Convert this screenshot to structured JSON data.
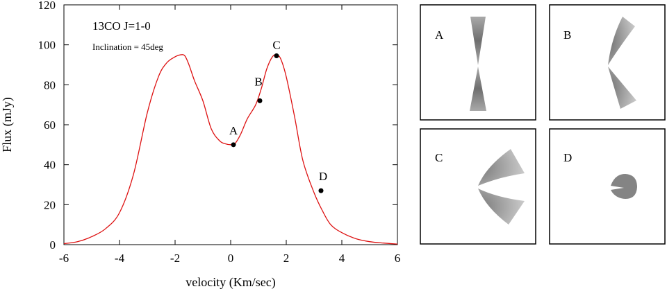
{
  "chart_data": {
    "type": "line",
    "xlabel": "velocity (Km/sec)",
    "ylabel": "Flux (mJy)",
    "xlim": [
      -6,
      6
    ],
    "ylim": [
      0,
      120
    ],
    "x_ticks": [
      "-6",
      "-4",
      "-2",
      "0",
      "2",
      "4",
      "6"
    ],
    "y_ticks": [
      "0",
      "20",
      "40",
      "60",
      "80",
      "100",
      "120"
    ],
    "annotations": [
      "13CO J=1-0",
      "Inclination = 45deg"
    ],
    "series": [
      {
        "color": "#dd1111",
        "x": [
          -6.0,
          -5.5,
          -5.0,
          -4.5,
          -4.0,
          -3.5,
          -3.0,
          -2.6,
          -2.3,
          -2.0,
          -1.8,
          -1.65,
          -1.5,
          -1.3,
          -1.0,
          -0.7,
          -0.4,
          -0.2,
          0.0,
          0.15,
          0.35,
          0.6,
          0.9,
          1.1,
          1.3,
          1.5,
          1.65,
          1.8,
          2.0,
          2.3,
          2.6,
          3.0,
          3.3,
          3.6,
          4.0,
          4.5,
          5.0,
          5.5,
          6.0
        ],
        "y": [
          0.5,
          1.5,
          4,
          8,
          16,
          35,
          66,
          84,
          91,
          94,
          95,
          94.5,
          90,
          82,
          72,
          58,
          52,
          50.5,
          50,
          50.5,
          55,
          63,
          70,
          78,
          88,
          94,
          95,
          93,
          84,
          64,
          42,
          26,
          17,
          10,
          6,
          3,
          1.5,
          0.8,
          0.3
        ]
      }
    ],
    "points": [
      {
        "label": "A",
        "x": 0.1,
        "y": 50
      },
      {
        "label": "B",
        "x": 1.05,
        "y": 72
      },
      {
        "label": "C",
        "x": 1.65,
        "y": 94.5
      },
      {
        "label": "D",
        "x": 3.25,
        "y": 27
      }
    ]
  },
  "panels": [
    {
      "label": "A"
    },
    {
      "label": "B"
    },
    {
      "label": "C"
    },
    {
      "label": "D"
    }
  ]
}
